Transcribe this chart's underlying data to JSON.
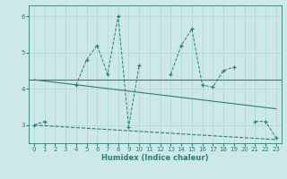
{
  "x_values": [
    0,
    1,
    2,
    3,
    4,
    5,
    6,
    7,
    8,
    9,
    10,
    11,
    12,
    13,
    14,
    15,
    16,
    17,
    18,
    19,
    20,
    21,
    22,
    23
  ],
  "line1_y": [
    3.0,
    3.1,
    null,
    null,
    4.1,
    4.8,
    5.2,
    4.4,
    6.0,
    2.95,
    4.65,
    null,
    null,
    4.4,
    5.2,
    5.65,
    4.1,
    4.05,
    4.5,
    4.6,
    null,
    3.1,
    3.1,
    2.65
  ],
  "line2_y_val": 4.25,
  "line3": [
    [
      0,
      3.0
    ],
    [
      23,
      2.6
    ]
  ],
  "line4": [
    [
      0,
      4.25
    ],
    [
      23,
      3.45
    ]
  ],
  "color": "#2e7d72",
  "bg_color": "#cce8e8",
  "grid_color": "#afd4d4",
  "xlabel": "Humidex (Indice chaleur)",
  "ylim": [
    2.5,
    6.3
  ],
  "xlim": [
    -0.5,
    23.5
  ],
  "yticks": [
    3,
    4,
    5,
    6
  ],
  "xticks": [
    0,
    1,
    2,
    3,
    4,
    5,
    6,
    7,
    8,
    9,
    10,
    11,
    12,
    13,
    14,
    15,
    16,
    17,
    18,
    19,
    20,
    21,
    22,
    23
  ],
  "xlabel_fontsize": 6.0,
  "tick_fontsize": 5.0
}
